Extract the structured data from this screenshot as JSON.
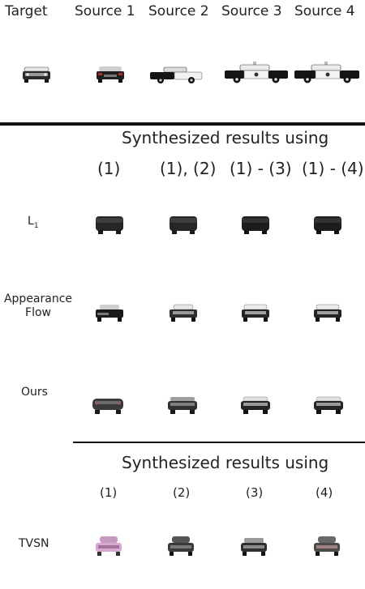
{
  "header": {
    "target": "Target",
    "source1": "Source 1",
    "source2": "Source 2",
    "source3": "Source 3",
    "source4": "Source 4"
  },
  "section1": {
    "title": "Synthesized results using",
    "columns": [
      "(1)",
      "(1), (2)",
      "(1) - (3)",
      "(1) - (4)"
    ],
    "rows": {
      "l1": "L",
      "l1_sub": "1",
      "af_line1": "Appearance",
      "af_line2": "Flow",
      "ours": "Ours"
    }
  },
  "section2": {
    "title": "Synthesized results using",
    "columns": [
      "(1)",
      "(2)",
      "(3)",
      "(4)"
    ],
    "row": "TVSN"
  },
  "colors": {
    "rule": "#111111",
    "car_dark": "#1e1e1e",
    "car_mid": "#555555",
    "car_white": "#f2f2f2",
    "car_pink": "#d9a7cf"
  }
}
